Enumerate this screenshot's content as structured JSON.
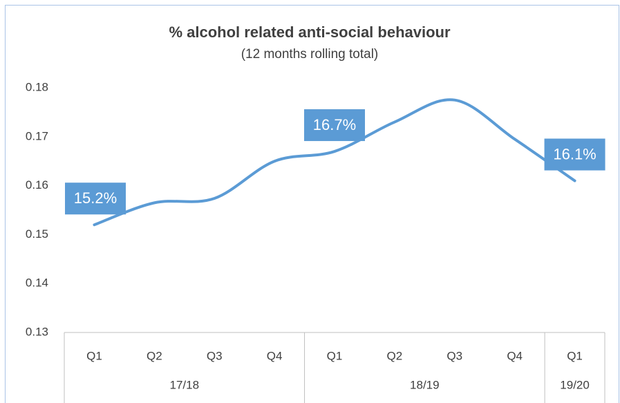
{
  "chart_data": {
    "type": "line",
    "title": "% alcohol related anti-social behaviour",
    "subtitle": "(12 months rolling total)",
    "categories": [
      "Q1",
      "Q2",
      "Q3",
      "Q4",
      "Q1",
      "Q2",
      "Q3",
      "Q4",
      "Q1"
    ],
    "groups": [
      {
        "name": "17/18",
        "count": 4
      },
      {
        "name": "18/19",
        "count": 4
      },
      {
        "name": "19/20",
        "count": 1
      }
    ],
    "series": [
      {
        "name": "% alcohol related",
        "color": "#5b9bd5",
        "values": [
          0.152,
          0.1565,
          0.1574,
          0.165,
          0.167,
          0.173,
          0.1775,
          0.1695,
          0.161
        ],
        "value_labels": [
          "15.2%",
          null,
          null,
          null,
          "16.7%",
          null,
          null,
          null,
          "16.1%"
        ]
      }
    ],
    "ylim": [
      0.13,
      0.18
    ],
    "yticks": [
      0.13,
      0.14,
      0.15,
      0.16,
      0.17,
      0.18
    ],
    "smooth": true
  }
}
